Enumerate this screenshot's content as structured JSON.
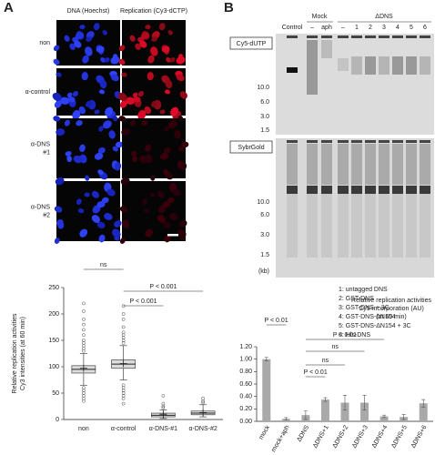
{
  "panel_a": {
    "label": "A",
    "columns": [
      "DNA (Hoechst)",
      "Replication (Cy3-dCTP)"
    ],
    "rows": [
      [
        "non"
      ],
      [
        "α-control"
      ],
      [
        "α-DNS",
        "#1"
      ],
      [
        "α-DNS",
        "#2"
      ]
    ]
  },
  "panel_b": {
    "label": "B",
    "lane_groups": [
      "Mock",
      "ΔDNS"
    ],
    "lanes": [
      "Control",
      "–",
      "aph",
      "–",
      "1",
      "2",
      "3",
      "4",
      "5",
      "6"
    ],
    "stains": [
      "Cy5-dUTP",
      "SybrGold"
    ],
    "markers_top": [
      "10.0",
      "6.0",
      "3.0",
      "1.5"
    ],
    "markers_bottom": [
      "10.0",
      "6.0",
      "3.0",
      "1.5"
    ],
    "unit": "(kb)",
    "legend": [
      "1: untagged DNS",
      "2: GST-DNS",
      "3: GST-DNS + 3C",
      "4: GST-DNS-ΔN154",
      "5: GST-DNS-ΔN154 + 3C",
      "6: His-DNS"
    ]
  },
  "chart_data": [
    {
      "type": "box",
      "y_label": [
        "Relative replication activities",
        "Cy3 intensities (at 60 min)"
      ],
      "categories": [
        "non",
        "α-control",
        "α-DNS-#1",
        "α-DNS-#2"
      ],
      "whisker_low": [
        65,
        75,
        2,
        5
      ],
      "q1": [
        88,
        97,
        5,
        9
      ],
      "median": [
        95,
        105,
        8,
        12
      ],
      "q3": [
        102,
        113,
        12,
        16
      ],
      "whisker_high": [
        125,
        140,
        18,
        28
      ],
      "means": [
        97,
        106,
        10,
        13
      ],
      "outliers": [
        [
          220,
          205,
          190,
          180,
          170,
          160,
          150,
          145,
          140,
          135,
          130,
          60,
          55,
          50,
          45,
          40,
          35
        ],
        [
          215,
          200,
          190,
          175,
          165,
          160,
          155,
          150,
          145,
          65,
          60,
          55,
          50,
          45,
          40,
          30
        ],
        [
          45,
          30,
          25,
          22
        ],
        [
          40,
          35,
          32
        ]
      ],
      "color": "#dddddd",
      "annotations": [
        "ns",
        "P < 0.001",
        "P < 0.001"
      ],
      "ylim": [
        0,
        250
      ],
      "yticks": [
        0,
        50,
        100,
        150,
        200,
        250
      ]
    },
    {
      "type": "bar",
      "title": [
        "Relative replication activities",
        "Cy5-incorporation (AU)",
        "(at 60 min)"
      ],
      "categories": [
        "mock",
        "mock+aph",
        "ΔDNS",
        "ΔDNS+1",
        "ΔDNS+2",
        "ΔDNS+3",
        "ΔDNS+4",
        "ΔDNS+5",
        "ΔDNS+6"
      ],
      "values": [
        1.0,
        0.04,
        0.1,
        0.35,
        0.3,
        0.3,
        0.08,
        0.07,
        0.29
      ],
      "errors": [
        0.03,
        0.02,
        0.07,
        0.03,
        0.12,
        0.12,
        0.02,
        0.04,
        0.06
      ],
      "color": "#a9a9a9",
      "annotations": [
        "P < 0.01",
        "P < 0.01",
        "ns",
        "ns",
        "P < 0.01"
      ],
      "ylim": [
        0,
        1.2
      ],
      "yticks": [
        {
          "value": 0,
          "label": "0.00"
        },
        {
          "value": 0.2,
          "label": "0.20"
        },
        {
          "value": 0.4,
          "label": "0.40"
        },
        {
          "value": 0.6,
          "label": "0.60"
        },
        {
          "value": 0.8,
          "label": "0.80"
        },
        {
          "value": 1.0,
          "label": "1.00"
        },
        {
          "value": 1.2,
          "label": "1.20"
        }
      ]
    }
  ]
}
